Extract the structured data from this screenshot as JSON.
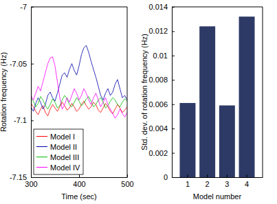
{
  "chart_data": [
    {
      "type": "line",
      "x_label": "Time (sec)",
      "y_label": "Rotation frequency (Hz)",
      "x": [
        300,
        305,
        310,
        315,
        320,
        325,
        330,
        335,
        340,
        345,
        350,
        355,
        360,
        365,
        370,
        375,
        380,
        385,
        390,
        395,
        400,
        405,
        410,
        415,
        420,
        425,
        430,
        435,
        440,
        445,
        450,
        455,
        460,
        465,
        470,
        475,
        480,
        485,
        490,
        495,
        500
      ],
      "xlim": [
        300,
        500
      ],
      "xticks": [
        300,
        400,
        500
      ],
      "ylim": [
        -7.15,
        -7
      ],
      "yticks": [
        -7.15,
        -7.1,
        -7.05,
        -7
      ],
      "legend": "lower left",
      "series": [
        {
          "name": "Model I",
          "color": "#ff0000",
          "values": [
            -7.085,
            -7.088,
            -7.092,
            -7.095,
            -7.09,
            -7.087,
            -7.093,
            -7.096,
            -7.09,
            -7.086,
            -7.089,
            -7.092,
            -7.088,
            -7.084,
            -7.087,
            -7.091,
            -7.089,
            -7.085,
            -7.088,
            -7.092,
            -7.09,
            -7.086,
            -7.083,
            -7.087,
            -7.09,
            -7.088,
            -7.084,
            -7.086,
            -7.091,
            -7.093,
            -7.089,
            -7.085,
            -7.088,
            -7.092,
            -7.094,
            -7.09,
            -7.086,
            -7.089,
            -7.093,
            -7.091,
            -7.088
          ]
        },
        {
          "name": "Model II",
          "color": "#0000aa",
          "values": [
            -7.088,
            -7.092,
            -7.085,
            -7.08,
            -7.084,
            -7.09,
            -7.086,
            -7.078,
            -7.075,
            -7.08,
            -7.083,
            -7.076,
            -7.068,
            -7.06,
            -7.058,
            -7.062,
            -7.055,
            -7.05,
            -7.056,
            -7.06,
            -7.052,
            -7.042,
            -7.036,
            -7.034,
            -7.04,
            -7.048,
            -7.055,
            -7.062,
            -7.07,
            -7.078,
            -7.082,
            -7.076,
            -7.072,
            -7.078,
            -7.075,
            -7.068,
            -7.064,
            -7.072,
            -7.08,
            -7.078,
            -7.082
          ]
        },
        {
          "name": "Model III",
          "color": "#00bb00",
          "values": [
            -7.08,
            -7.083,
            -7.088,
            -7.085,
            -7.079,
            -7.082,
            -7.087,
            -7.09,
            -7.086,
            -7.081,
            -7.084,
            -7.089,
            -7.087,
            -7.082,
            -7.078,
            -7.081,
            -7.086,
            -7.088,
            -7.084,
            -7.08,
            -7.083,
            -7.087,
            -7.085,
            -7.081,
            -7.079,
            -7.083,
            -7.088,
            -7.086,
            -7.082,
            -7.08,
            -7.084,
            -7.089,
            -7.087,
            -7.083,
            -7.08,
            -7.082,
            -7.086,
            -7.088,
            -7.084,
            -7.081,
            -7.083
          ]
        },
        {
          "name": "Model IV",
          "color": "#ff00ff",
          "values": [
            -7.078,
            -7.082,
            -7.076,
            -7.07,
            -7.074,
            -7.066,
            -7.058,
            -7.05,
            -7.045,
            -7.044,
            -7.052,
            -7.066,
            -7.08,
            -7.09,
            -7.086,
            -7.08,
            -7.084,
            -7.078,
            -7.072,
            -7.076,
            -7.082,
            -7.078,
            -7.072,
            -7.076,
            -7.082,
            -7.086,
            -7.08,
            -7.076,
            -7.082,
            -7.088,
            -7.084,
            -7.08,
            -7.086,
            -7.09,
            -7.094,
            -7.098,
            -7.095,
            -7.09,
            -7.094,
            -7.097,
            -7.093
          ]
        }
      ]
    },
    {
      "type": "bar",
      "x_label": "Model number",
      "y_label": "Std. dev. of rotation frequency (Hz)",
      "categories": [
        "1",
        "2",
        "3",
        "4"
      ],
      "values": [
        0.0061,
        0.0124,
        0.0059,
        0.0132
      ],
      "color": "#2e3a66",
      "ylim": [
        0,
        0.014
      ],
      "yticks": [
        0,
        0.002,
        0.004,
        0.006,
        0.008,
        0.01,
        0.012,
        0.014
      ]
    }
  ]
}
